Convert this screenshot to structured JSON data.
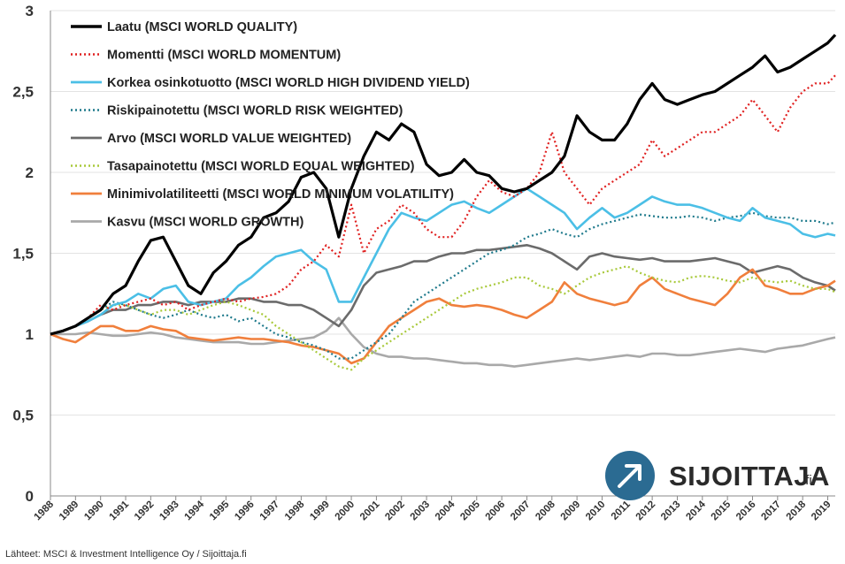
{
  "source_text": "Lähteet: MSCI & Investment Intelligence Oy / Sijoittaja.fi",
  "logo": {
    "name": "SIJOITTAJA",
    "suffix": ".fi"
  },
  "chart_data": {
    "type": "line",
    "ylim": [
      0,
      3
    ],
    "yticks": [
      "0",
      "0,5",
      "1",
      "1,5",
      "2",
      "2,5",
      "3"
    ],
    "ytick_values": [
      0,
      0.5,
      1,
      1.5,
      2,
      2.5,
      3
    ],
    "xlim": [
      1988.0,
      2019.3
    ],
    "xticks": [
      "1988",
      "1989",
      "1990",
      "1991",
      "1992",
      "1993",
      "1994",
      "1995",
      "1996",
      "1997",
      "1998",
      "1999",
      "2000",
      "2001",
      "2002",
      "2003",
      "2004",
      "2005",
      "2006",
      "2007",
      "2008",
      "2009",
      "2010",
      "2011",
      "2012",
      "2013",
      "2014",
      "2015",
      "2016",
      "2017",
      "2018",
      "2019"
    ],
    "grid": "horizontal",
    "legend_position": "top-left",
    "series": [
      {
        "name": "Laatu (MSCI WORLD QUALITY)",
        "color": "#000000",
        "style": "solid",
        "x": [
          1988,
          1988.5,
          1989,
          1989.5,
          1990,
          1990.5,
          1991,
          1991.5,
          1992,
          1992.5,
          1993,
          1993.5,
          1994,
          1994.5,
          1995,
          1995.5,
          1996,
          1996.5,
          1997,
          1997.5,
          1998,
          1998.5,
          1999,
          1999.5,
          2000,
          2000.5,
          2001,
          2001.5,
          2002,
          2002.5,
          2003,
          2003.5,
          2004,
          2004.5,
          2005,
          2005.5,
          2006,
          2006.5,
          2007,
          2007.5,
          2008,
          2008.5,
          2009,
          2009.5,
          2010,
          2010.5,
          2011,
          2011.5,
          2012,
          2012.5,
          2013,
          2013.5,
          2014,
          2014.5,
          2015,
          2015.5,
          2016,
          2016.5,
          2017,
          2017.5,
          2018,
          2018.5,
          2019,
          2019.3
        ],
        "y": [
          1.0,
          1.02,
          1.05,
          1.1,
          1.15,
          1.25,
          1.3,
          1.45,
          1.58,
          1.6,
          1.45,
          1.3,
          1.25,
          1.38,
          1.45,
          1.55,
          1.6,
          1.72,
          1.75,
          1.82,
          1.97,
          2.0,
          1.9,
          1.6,
          1.9,
          2.1,
          2.25,
          2.2,
          2.3,
          2.25,
          2.05,
          1.98,
          2.0,
          2.08,
          2.0,
          1.98,
          1.9,
          1.88,
          1.9,
          1.95,
          2.0,
          2.1,
          2.35,
          2.25,
          2.2,
          2.2,
          2.3,
          2.45,
          2.55,
          2.45,
          2.42,
          2.45,
          2.48,
          2.5,
          2.55,
          2.6,
          2.65,
          2.72,
          2.62,
          2.65,
          2.7,
          2.75,
          2.8,
          2.85
        ]
      },
      {
        "name": "Momentti (MSCI WORLD MOMENTUM)",
        "color": "#e02020",
        "style": "dotted",
        "x": [
          1988,
          1988.5,
          1989,
          1989.5,
          1990,
          1990.5,
          1991,
          1991.5,
          1992,
          1992.5,
          1993,
          1993.5,
          1994,
          1994.5,
          1995,
          1995.5,
          1996,
          1996.5,
          1997,
          1997.5,
          1998,
          1998.5,
          1999,
          1999.5,
          2000,
          2000.5,
          2001,
          2001.5,
          2002,
          2002.5,
          2003,
          2003.5,
          2004,
          2004.5,
          2005,
          2005.5,
          2006,
          2006.5,
          2007,
          2007.5,
          2008,
          2008.5,
          2009,
          2009.5,
          2010,
          2010.5,
          2011,
          2011.5,
          2012,
          2012.5,
          2013,
          2013.5,
          2014,
          2014.5,
          2015,
          2015.5,
          2016,
          2016.5,
          2017,
          2017.5,
          2018,
          2018.5,
          2019,
          2019.3
        ],
        "y": [
          1.0,
          1.02,
          1.05,
          1.1,
          1.18,
          1.15,
          1.18,
          1.2,
          1.22,
          1.18,
          1.2,
          1.15,
          1.18,
          1.2,
          1.22,
          1.2,
          1.22,
          1.23,
          1.25,
          1.3,
          1.4,
          1.45,
          1.55,
          1.48,
          1.8,
          1.5,
          1.65,
          1.7,
          1.8,
          1.75,
          1.65,
          1.6,
          1.6,
          1.7,
          1.85,
          1.95,
          1.88,
          1.85,
          1.9,
          2.0,
          2.25,
          2.0,
          1.9,
          1.8,
          1.9,
          1.95,
          2.0,
          2.05,
          2.2,
          2.1,
          2.15,
          2.2,
          2.25,
          2.25,
          2.3,
          2.35,
          2.45,
          2.35,
          2.25,
          2.4,
          2.5,
          2.55,
          2.55,
          2.6
        ]
      },
      {
        "name": "Korkea osinkotuotto (MSCI WORLD HIGH DIVIDEND YIELD)",
        "color": "#4bbfe6",
        "style": "solid",
        "x": [
          1988,
          1988.5,
          1989,
          1989.5,
          1990,
          1990.5,
          1991,
          1991.5,
          1992,
          1992.5,
          1993,
          1993.5,
          1994,
          1994.5,
          1995,
          1995.5,
          1996,
          1996.5,
          1997,
          1997.5,
          1998,
          1998.5,
          1999,
          1999.5,
          2000,
          2000.5,
          2001,
          2001.5,
          2002,
          2002.5,
          2003,
          2003.5,
          2004,
          2004.5,
          2005,
          2005.5,
          2006,
          2006.5,
          2007,
          2007.5,
          2008,
          2008.5,
          2009,
          2009.5,
          2010,
          2010.5,
          2011,
          2011.5,
          2012,
          2012.5,
          2013,
          2013.5,
          2014,
          2014.5,
          2015,
          2015.5,
          2016,
          2016.5,
          2017,
          2017.5,
          2018,
          2018.5,
          2019,
          2019.3
        ],
        "y": [
          1.0,
          1.02,
          1.05,
          1.08,
          1.12,
          1.18,
          1.2,
          1.25,
          1.22,
          1.28,
          1.3,
          1.2,
          1.18,
          1.2,
          1.22,
          1.3,
          1.35,
          1.42,
          1.48,
          1.5,
          1.52,
          1.45,
          1.4,
          1.2,
          1.2,
          1.35,
          1.5,
          1.65,
          1.75,
          1.72,
          1.7,
          1.75,
          1.8,
          1.82,
          1.78,
          1.75,
          1.8,
          1.85,
          1.9,
          1.85,
          1.8,
          1.75,
          1.65,
          1.72,
          1.78,
          1.72,
          1.75,
          1.8,
          1.85,
          1.82,
          1.8,
          1.8,
          1.78,
          1.75,
          1.72,
          1.7,
          1.78,
          1.72,
          1.7,
          1.68,
          1.62,
          1.6,
          1.62,
          1.61
        ]
      },
      {
        "name": "Riskipainotettu (MSCI WORLD RISK WEIGHTED)",
        "color": "#1f7a8c",
        "style": "dotted",
        "x": [
          1988,
          1988.5,
          1989,
          1989.5,
          1990,
          1990.5,
          1991,
          1991.5,
          1992,
          1992.5,
          1993,
          1993.5,
          1994,
          1994.5,
          1995,
          1995.5,
          1996,
          1996.5,
          1997,
          1997.5,
          1998,
          1998.5,
          1999,
          1999.5,
          2000,
          2000.5,
          2001,
          2001.5,
          2002,
          2002.5,
          2003,
          2003.5,
          2004,
          2004.5,
          2005,
          2005.5,
          2006,
          2006.5,
          2007,
          2007.5,
          2008,
          2008.5,
          2009,
          2009.5,
          2010,
          2010.5,
          2011,
          2011.5,
          2012,
          2012.5,
          2013,
          2013.5,
          2014,
          2014.5,
          2015,
          2015.5,
          2016,
          2016.5,
          2017,
          2017.5,
          2018,
          2018.5,
          2019,
          2019.3
        ],
        "y": [
          1.0,
          1.02,
          1.05,
          1.1,
          1.15,
          1.2,
          1.18,
          1.15,
          1.12,
          1.1,
          1.12,
          1.15,
          1.12,
          1.1,
          1.12,
          1.08,
          1.1,
          1.05,
          1.0,
          0.98,
          0.95,
          0.93,
          0.9,
          0.85,
          0.85,
          0.9,
          0.95,
          1.0,
          1.1,
          1.2,
          1.25,
          1.3,
          1.35,
          1.4,
          1.45,
          1.5,
          1.52,
          1.55,
          1.6,
          1.62,
          1.65,
          1.62,
          1.6,
          1.65,
          1.68,
          1.7,
          1.72,
          1.74,
          1.73,
          1.72,
          1.72,
          1.73,
          1.72,
          1.7,
          1.72,
          1.73,
          1.75,
          1.73,
          1.72,
          1.72,
          1.7,
          1.7,
          1.68,
          1.69
        ]
      },
      {
        "name": "Arvo (MSCI WORLD VALUE WEIGHTED)",
        "color": "#6b6b6b",
        "style": "solid",
        "x": [
          1988,
          1988.5,
          1989,
          1989.5,
          1990,
          1990.5,
          1991,
          1991.5,
          1992,
          1992.5,
          1993,
          1993.5,
          1994,
          1994.5,
          1995,
          1995.5,
          1996,
          1996.5,
          1997,
          1997.5,
          1998,
          1998.5,
          1999,
          1999.5,
          2000,
          2000.5,
          2001,
          2001.5,
          2002,
          2002.5,
          2003,
          2003.5,
          2004,
          2004.5,
          2005,
          2005.5,
          2006,
          2006.5,
          2007,
          2007.5,
          2008,
          2008.5,
          2009,
          2009.5,
          2010,
          2010.5,
          2011,
          2011.5,
          2012,
          2012.5,
          2013,
          2013.5,
          2014,
          2014.5,
          2015,
          2015.5,
          2016,
          2016.5,
          2017,
          2017.5,
          2018,
          2018.5,
          2019,
          2019.3
        ],
        "y": [
          1.0,
          1.02,
          1.05,
          1.08,
          1.12,
          1.15,
          1.15,
          1.18,
          1.18,
          1.2,
          1.2,
          1.18,
          1.2,
          1.2,
          1.2,
          1.22,
          1.22,
          1.2,
          1.2,
          1.18,
          1.18,
          1.15,
          1.1,
          1.05,
          1.15,
          1.3,
          1.38,
          1.4,
          1.42,
          1.45,
          1.45,
          1.48,
          1.5,
          1.5,
          1.52,
          1.52,
          1.53,
          1.54,
          1.55,
          1.53,
          1.5,
          1.45,
          1.4,
          1.48,
          1.5,
          1.48,
          1.47,
          1.46,
          1.47,
          1.45,
          1.45,
          1.45,
          1.46,
          1.47,
          1.45,
          1.43,
          1.38,
          1.4,
          1.42,
          1.4,
          1.35,
          1.32,
          1.3,
          1.27
        ]
      },
      {
        "name": "Tasapainotettu (MSCI WORLD EQUAL WEIGHTED)",
        "color": "#a8c93a",
        "style": "dotted",
        "x": [
          1988,
          1988.5,
          1989,
          1989.5,
          1990,
          1990.5,
          1991,
          1991.5,
          1992,
          1992.5,
          1993,
          1993.5,
          1994,
          1994.5,
          1995,
          1995.5,
          1996,
          1996.5,
          1997,
          1997.5,
          1998,
          1998.5,
          1999,
          1999.5,
          2000,
          2000.5,
          2001,
          2001.5,
          2002,
          2002.5,
          2003,
          2003.5,
          2004,
          2004.5,
          2005,
          2005.5,
          2006,
          2006.5,
          2007,
          2007.5,
          2008,
          2008.5,
          2009,
          2009.5,
          2010,
          2010.5,
          2011,
          2011.5,
          2012,
          2012.5,
          2013,
          2013.5,
          2014,
          2014.5,
          2015,
          2015.5,
          2016,
          2016.5,
          2017,
          2017.5,
          2018,
          2018.5,
          2019,
          2019.3
        ],
        "y": [
          1.0,
          1.02,
          1.05,
          1.1,
          1.15,
          1.18,
          1.18,
          1.15,
          1.12,
          1.15,
          1.15,
          1.12,
          1.15,
          1.18,
          1.2,
          1.18,
          1.15,
          1.12,
          1.05,
          1.0,
          0.95,
          0.9,
          0.85,
          0.8,
          0.78,
          0.85,
          0.9,
          0.95,
          1.0,
          1.05,
          1.1,
          1.15,
          1.2,
          1.25,
          1.28,
          1.3,
          1.32,
          1.35,
          1.35,
          1.3,
          1.28,
          1.25,
          1.3,
          1.35,
          1.38,
          1.4,
          1.42,
          1.38,
          1.35,
          1.33,
          1.32,
          1.35,
          1.36,
          1.35,
          1.33,
          1.32,
          1.35,
          1.33,
          1.32,
          1.33,
          1.3,
          1.28,
          1.28,
          1.26
        ]
      },
      {
        "name": "Minimivolatiliteetti (MSCI WORLD MINIMUM VOLATILITY)",
        "color": "#f07f3c",
        "style": "solid",
        "x": [
          1988,
          1988.5,
          1989,
          1989.5,
          1990,
          1990.5,
          1991,
          1991.5,
          1992,
          1992.5,
          1993,
          1993.5,
          1994,
          1994.5,
          1995,
          1995.5,
          1996,
          1996.5,
          1997,
          1997.5,
          1998,
          1998.5,
          1999,
          1999.5,
          2000,
          2000.5,
          2001,
          2001.5,
          2002,
          2002.5,
          2003,
          2003.5,
          2004,
          2004.5,
          2005,
          2005.5,
          2006,
          2006.5,
          2007,
          2007.5,
          2008,
          2008.5,
          2009,
          2009.5,
          2010,
          2010.5,
          2011,
          2011.5,
          2012,
          2012.5,
          2013,
          2013.5,
          2014,
          2014.5,
          2015,
          2015.5,
          2016,
          2016.5,
          2017,
          2017.5,
          2018,
          2018.5,
          2019,
          2019.3
        ],
        "y": [
          1.0,
          0.97,
          0.95,
          1.0,
          1.05,
          1.05,
          1.02,
          1.02,
          1.05,
          1.03,
          1.02,
          0.98,
          0.97,
          0.96,
          0.97,
          0.98,
          0.97,
          0.97,
          0.96,
          0.95,
          0.93,
          0.92,
          0.9,
          0.88,
          0.82,
          0.85,
          0.95,
          1.05,
          1.1,
          1.15,
          1.2,
          1.22,
          1.18,
          1.17,
          1.18,
          1.17,
          1.15,
          1.12,
          1.1,
          1.15,
          1.2,
          1.32,
          1.25,
          1.22,
          1.2,
          1.18,
          1.2,
          1.3,
          1.35,
          1.28,
          1.25,
          1.22,
          1.2,
          1.18,
          1.25,
          1.35,
          1.4,
          1.3,
          1.28,
          1.25,
          1.25,
          1.28,
          1.3,
          1.33
        ]
      },
      {
        "name": "Kasvu (MSCI WORLD GROWTH)",
        "color": "#a9a9a9",
        "style": "solid",
        "x": [
          1988,
          1988.5,
          1989,
          1989.5,
          1990,
          1990.5,
          1991,
          1991.5,
          1992,
          1992.5,
          1993,
          1993.5,
          1994,
          1994.5,
          1995,
          1995.5,
          1996,
          1996.5,
          1997,
          1997.5,
          1998,
          1998.5,
          1999,
          1999.5,
          2000,
          2000.5,
          2001,
          2001.5,
          2002,
          2002.5,
          2003,
          2003.5,
          2004,
          2004.5,
          2005,
          2005.5,
          2006,
          2006.5,
          2007,
          2007.5,
          2008,
          2008.5,
          2009,
          2009.5,
          2010,
          2010.5,
          2011,
          2011.5,
          2012,
          2012.5,
          2013,
          2013.5,
          2014,
          2014.5,
          2015,
          2015.5,
          2016,
          2016.5,
          2017,
          2017.5,
          2018,
          2018.5,
          2019,
          2019.3
        ],
        "y": [
          1.0,
          1.0,
          1.0,
          1.01,
          1.0,
          0.99,
          0.99,
          1.0,
          1.01,
          1.0,
          0.98,
          0.97,
          0.96,
          0.95,
          0.95,
          0.95,
          0.94,
          0.94,
          0.95,
          0.96,
          0.97,
          0.98,
          1.02,
          1.1,
          1.0,
          0.92,
          0.88,
          0.86,
          0.86,
          0.85,
          0.85,
          0.84,
          0.83,
          0.82,
          0.82,
          0.81,
          0.81,
          0.8,
          0.81,
          0.82,
          0.83,
          0.84,
          0.85,
          0.84,
          0.85,
          0.86,
          0.87,
          0.86,
          0.88,
          0.88,
          0.87,
          0.87,
          0.88,
          0.89,
          0.9,
          0.91,
          0.9,
          0.89,
          0.91,
          0.92,
          0.93,
          0.95,
          0.97,
          0.98
        ]
      }
    ]
  }
}
